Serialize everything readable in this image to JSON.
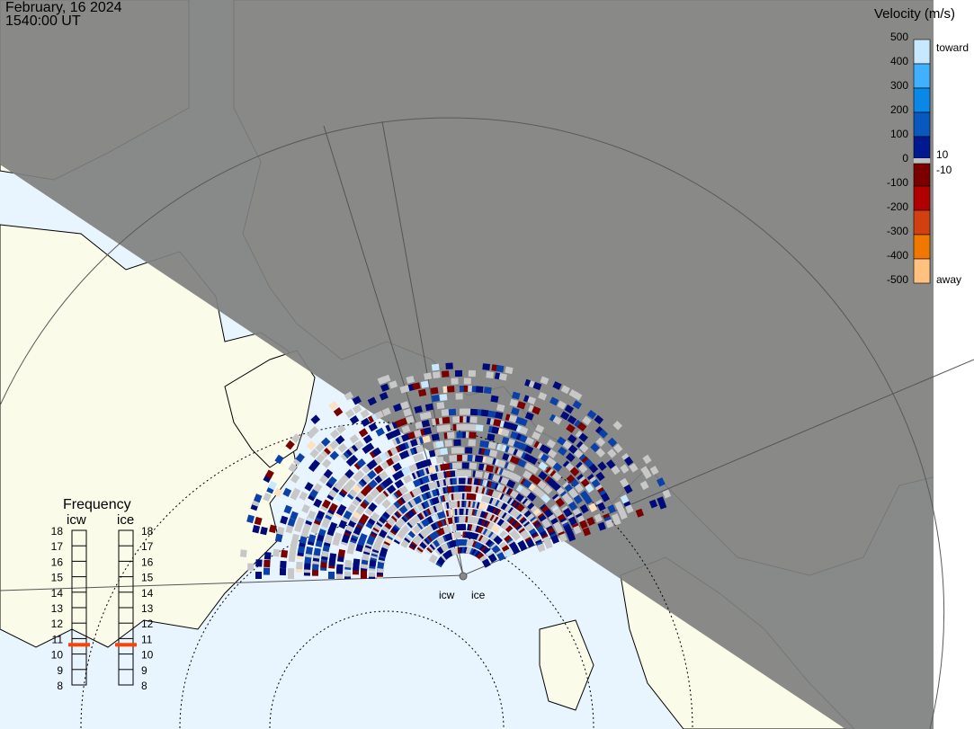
{
  "header": {
    "date": "February, 16 2024",
    "time": "1540:00 UT"
  },
  "colors": {
    "land": "#fbfbea",
    "ocean": "#e8f4fe",
    "night": "#808080",
    "ground_scatter": "#c8c8c8"
  },
  "velocity_scale": {
    "title": "Velocity (m/s)",
    "ticks": [
      "500",
      "400",
      "300",
      "200",
      "100",
      "0",
      "-100",
      "-200",
      "-300",
      "-400",
      "-500"
    ],
    "toward_label": "toward",
    "away_label": "away",
    "pos_threshold": "10",
    "neg_threshold": "-10",
    "colors": [
      "#c8e8ff",
      "#5ab8ff",
      "#0a98f0",
      "#0570d0",
      "#0a48b0",
      "#00107a",
      "#c0c0c0",
      "#7a0000",
      "#b00000",
      "#d04000",
      "#f07800",
      "#ffb060",
      "#ffe8cc"
    ]
  },
  "frequency": {
    "title": "Frequency",
    "radars": [
      {
        "name": "icw",
        "freq_mhz": 10.6
      },
      {
        "name": "ice",
        "freq_mhz": 10.6
      }
    ],
    "ticks": [
      "18",
      "17",
      "16",
      "15",
      "14",
      "13",
      "12",
      "11",
      "10",
      "9",
      "8"
    ],
    "range_mhz": [
      8,
      18
    ],
    "marker_color": "#ff4000"
  },
  "radar_labels": {
    "icw": "icw",
    "ice": "ice"
  }
}
